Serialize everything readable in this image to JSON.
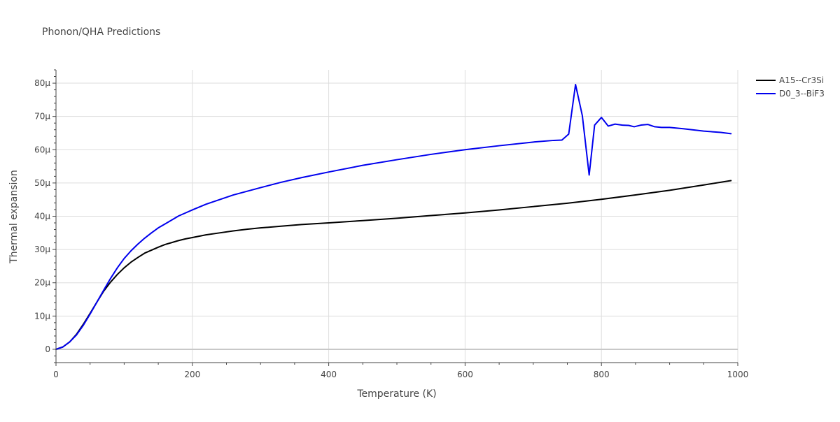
{
  "chart_data": {
    "type": "line",
    "title": "Phonon/QHA Predictions",
    "xlabel": "Temperature (K)",
    "ylabel": "Thermal expansion",
    "xlim": [
      0,
      1000
    ],
    "ylim": [
      -4e-06,
      8.4e-05
    ],
    "xticks": [
      0,
      200,
      400,
      600,
      800,
      1000
    ],
    "xtick_labels": [
      "0",
      "200",
      "400",
      "600",
      "800",
      "1000"
    ],
    "yticks": [
      0,
      1e-05,
      2e-05,
      3e-05,
      4e-05,
      5e-05,
      6e-05,
      7e-05,
      8e-05
    ],
    "ytick_labels": [
      "0",
      "10μ",
      "20μ",
      "30μ",
      "40μ",
      "50μ",
      "60μ",
      "70μ",
      "80μ"
    ],
    "grid": true,
    "legend_position": "top-right",
    "series": [
      {
        "name": "A15--Cr3Si",
        "color": "#000000",
        "x": [
          0,
          10,
          20,
          30,
          40,
          50,
          60,
          70,
          80,
          90,
          100,
          110,
          120,
          130,
          140,
          150,
          160,
          170,
          180,
          190,
          200,
          220,
          240,
          260,
          280,
          300,
          330,
          360,
          400,
          450,
          500,
          550,
          600,
          650,
          700,
          750,
          800,
          850,
          900,
          950,
          990
        ],
        "y": [
          0,
          7e-07,
          2.2e-06,
          4.5e-06,
          7.5e-06,
          1.08e-05,
          1.42e-05,
          1.75e-05,
          2.02e-05,
          2.25e-05,
          2.45e-05,
          2.62e-05,
          2.76e-05,
          2.89e-05,
          2.98e-05,
          3.07e-05,
          3.15e-05,
          3.21e-05,
          3.27e-05,
          3.32e-05,
          3.36e-05,
          3.44e-05,
          3.5e-05,
          3.56e-05,
          3.61e-05,
          3.65e-05,
          3.7e-05,
          3.75e-05,
          3.8e-05,
          3.87e-05,
          3.94e-05,
          4.02e-05,
          4.1e-05,
          4.19e-05,
          4.29e-05,
          4.39e-05,
          4.51e-05,
          4.64e-05,
          4.78e-05,
          4.94e-05,
          5.07e-05
        ]
      },
      {
        "name": "D0_3--BiF3",
        "color": "#0000ee",
        "x": [
          0,
          10,
          20,
          30,
          40,
          50,
          60,
          70,
          80,
          90,
          100,
          110,
          120,
          130,
          140,
          150,
          160,
          170,
          180,
          190,
          200,
          220,
          240,
          260,
          280,
          300,
          330,
          360,
          400,
          450,
          500,
          550,
          600,
          650,
          700,
          730,
          742,
          752,
          762,
          772,
          782,
          790,
          800,
          810,
          820,
          830,
          840,
          848,
          858,
          868,
          878,
          888,
          900,
          920,
          950,
          975,
          990
        ],
        "y": [
          0,
          7e-07,
          2.2e-06,
          4.3e-06,
          7.2e-06,
          1.06e-05,
          1.42e-05,
          1.78e-05,
          2.13e-05,
          2.45e-05,
          2.73e-05,
          2.96e-05,
          3.16e-05,
          3.34e-05,
          3.5e-05,
          3.65e-05,
          3.77e-05,
          3.89e-05,
          4.01e-05,
          4.1e-05,
          4.19e-05,
          4.36e-05,
          4.5e-05,
          4.64e-05,
          4.75e-05,
          4.86e-05,
          5.02e-05,
          5.16e-05,
          5.33e-05,
          5.53e-05,
          5.7e-05,
          5.86e-05,
          6e-05,
          6.12e-05,
          6.23e-05,
          6.28e-05,
          6.29e-05,
          6.47e-05,
          7.96e-05,
          7.02e-05,
          5.24e-05,
          6.74e-05,
          6.97e-05,
          6.71e-05,
          6.77e-05,
          6.74e-05,
          6.73e-05,
          6.69e-05,
          6.74e-05,
          6.76e-05,
          6.69e-05,
          6.67e-05,
          6.67e-05,
          6.63e-05,
          6.56e-05,
          6.52e-05,
          6.48e-05
        ]
      }
    ]
  }
}
